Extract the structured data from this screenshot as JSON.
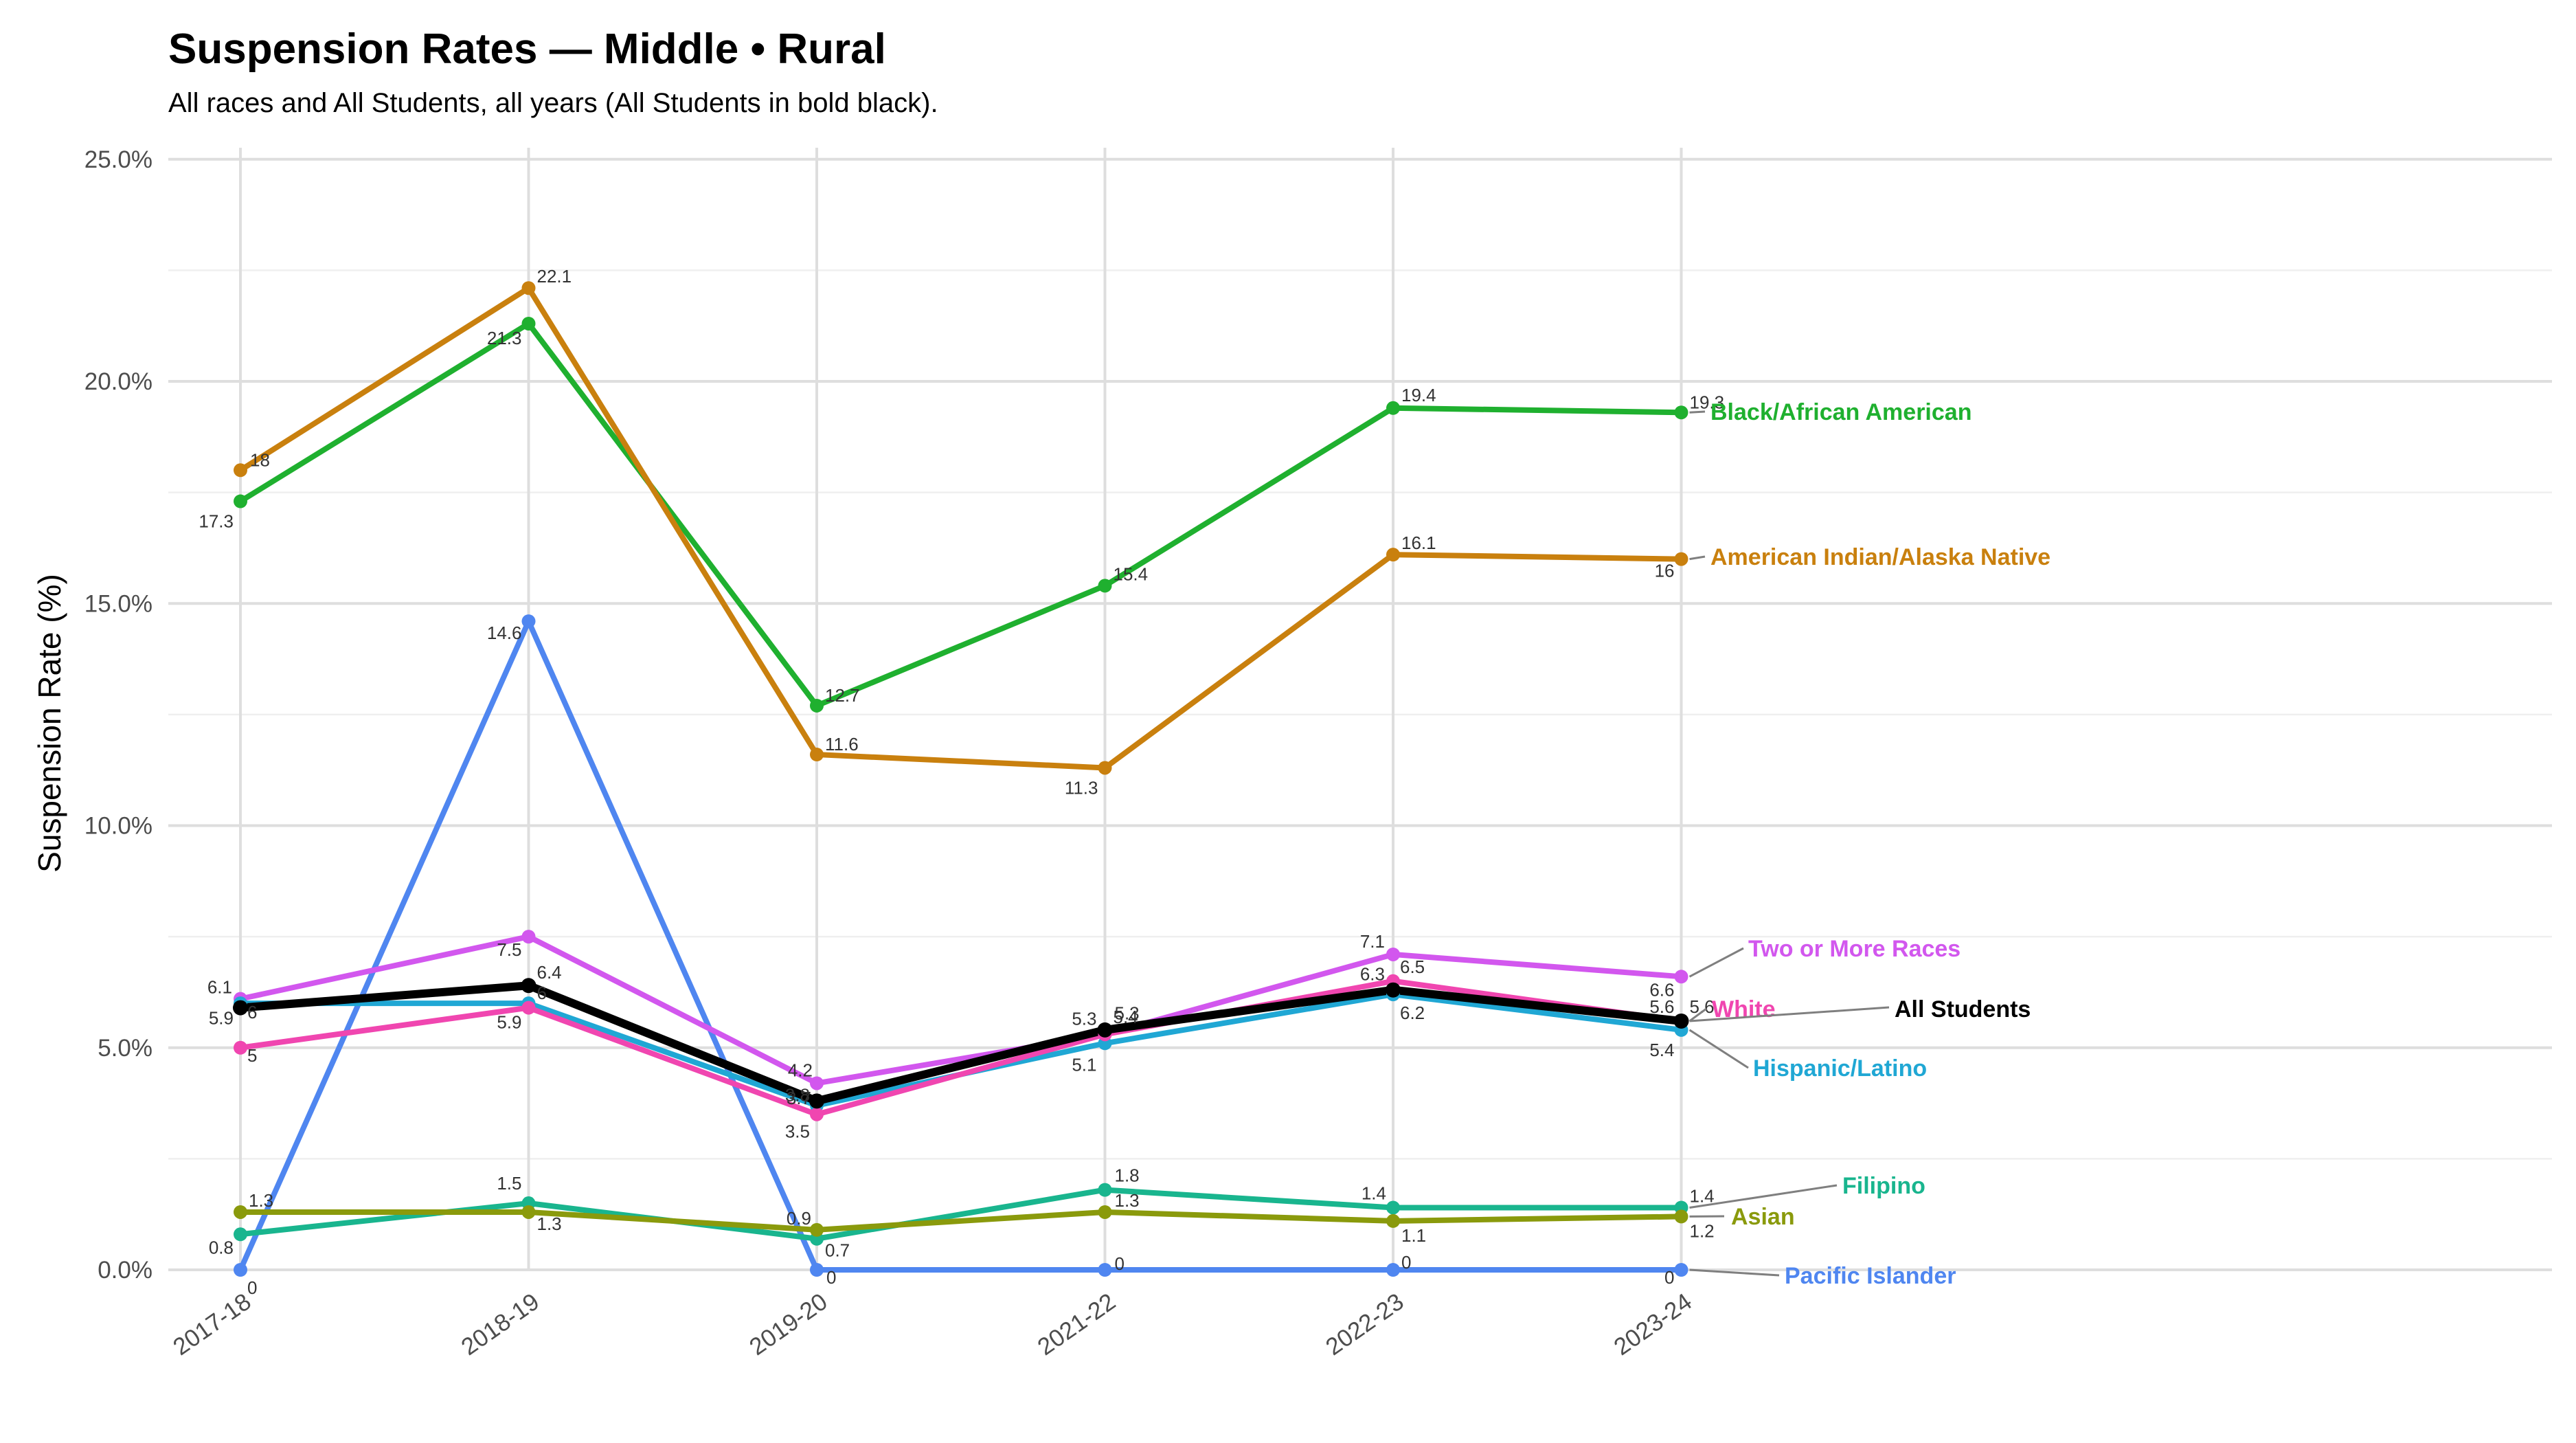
{
  "chart_data": {
    "type": "line",
    "title": "Suspension Rates — Middle • Rural",
    "subtitle": "All races and All Students, all years (All Students in bold black).",
    "ylabel": "Suspension Rate (%)",
    "xlabel": "",
    "categories": [
      "2017-18",
      "2018-19",
      "2019-20",
      "2021-22",
      "2022-23",
      "2023-24"
    ],
    "yticks": [
      "0.0%",
      "5.0%",
      "10.0%",
      "15.0%",
      "20.0%",
      "25.0%"
    ],
    "ylim": [
      0,
      25
    ],
    "grid": true,
    "legend": "direct labels at right end of lines",
    "series": [
      {
        "name": "Black/African American",
        "color": "#1fb02f",
        "values": [
          17.3,
          21.3,
          12.7,
          15.4,
          19.4,
          19.3
        ],
        "labels": [
          "17.3",
          "21.3",
          "12.7",
          "15.4",
          "19.4",
          "19.3"
        ]
      },
      {
        "name": "American Indian/Alaska Native",
        "color": "#c9800e",
        "values": [
          18,
          22.1,
          11.6,
          11.3,
          16.1,
          16
        ],
        "labels": [
          "18",
          "22.1",
          "11.6",
          "11.3",
          "16.1",
          "16"
        ]
      },
      {
        "name": "Pacific Islander",
        "color": "#4f86f0",
        "values": [
          0,
          14.6,
          0,
          0,
          0,
          0
        ],
        "labels": [
          "0",
          "14.6",
          "0",
          "0",
          "0",
          "0"
        ]
      },
      {
        "name": "Two or More Races",
        "color": "#d257ee",
        "values": [
          6.1,
          7.5,
          4.2,
          5.3,
          7.1,
          6.6
        ],
        "labels": [
          "6.1",
          "7.5",
          "4.2",
          "5.3",
          "7.1",
          "6.6"
        ]
      },
      {
        "name": "Hispanic/Latino",
        "color": "#20a7d4",
        "values": [
          6,
          6,
          3.7,
          5.1,
          6.2,
          5.4
        ],
        "labels": [
          "6",
          "6",
          "3.7",
          "5.1",
          "6.2",
          "5.4"
        ]
      },
      {
        "name": "White",
        "color": "#f046b0",
        "values": [
          5,
          5.9,
          3.5,
          5.3,
          6.5,
          5.6
        ],
        "labels": [
          "5",
          "5.9",
          "3.5",
          "5.3",
          "6.5",
          "5.6"
        ]
      },
      {
        "name": "All Students",
        "color": "#000000",
        "bold": true,
        "values": [
          5.9,
          6.4,
          3.8,
          5.4,
          6.3,
          5.6
        ],
        "labels": [
          "5.9",
          "6.4",
          "3.8",
          "5.4",
          "6.3",
          "5.6"
        ]
      },
      {
        "name": "Filipino",
        "color": "#19b58e",
        "values": [
          0.8,
          1.5,
          0.7,
          1.8,
          1.4,
          1.4
        ],
        "labels": [
          "0.8",
          "1.5",
          "0.7",
          "1.8",
          "1.4",
          "1.4"
        ]
      },
      {
        "name": "Asian",
        "color": "#8a9a0c",
        "values": [
          1.3,
          1.3,
          0.9,
          1.3,
          1.1,
          1.2
        ],
        "labels": [
          "1.3",
          "1.3",
          "0.9",
          "1.3",
          "1.1",
          "1.2"
        ]
      }
    ]
  }
}
